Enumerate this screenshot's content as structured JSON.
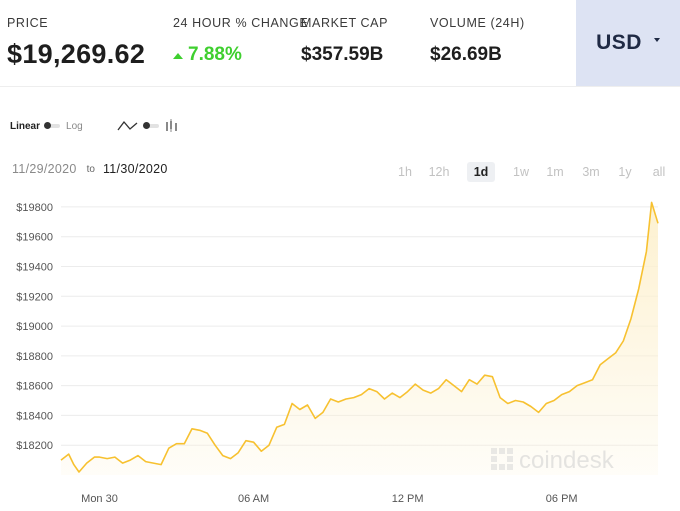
{
  "stats": {
    "price": {
      "label": "PRICE",
      "value": "$19,269.62"
    },
    "change": {
      "label": "24 HOUR % CHANGE",
      "value": "7.88%",
      "direction": "up"
    },
    "market_cap": {
      "label": "MARKET CAP",
      "value": "$357.59B"
    },
    "volume": {
      "label": "VOLUME (24H)",
      "value": "$26.69B"
    }
  },
  "currency": {
    "selected": "USD"
  },
  "scale_toggle": {
    "left": "Linear",
    "right": "Log",
    "selected": "Linear"
  },
  "chart_type_toggle": {
    "left_icon": "line-chart-icon",
    "right_icon": "candlestick-icon",
    "selected": "line"
  },
  "date_range": {
    "from": "11/29/2020",
    "sep": "to",
    "to": "11/30/2020"
  },
  "ranges": [
    {
      "label": "1h",
      "active": false
    },
    {
      "label": "12h",
      "active": false
    },
    {
      "label": "1d",
      "active": true
    },
    {
      "label": "1w",
      "active": false
    },
    {
      "label": "1m",
      "active": false
    },
    {
      "label": "3m",
      "active": false
    },
    {
      "label": "1y",
      "active": false
    },
    {
      "label": "all",
      "active": false
    }
  ],
  "watermark": "coindesk",
  "colors": {
    "line": "#f7c130",
    "fill": "#fdf1d0",
    "positive": "#3fcf2f",
    "currency_bg": "#dde3f3"
  },
  "chart_data": {
    "type": "area",
    "x_unit": "hours since Mon 30 00:00",
    "xlim": [
      -1.5,
      21.75
    ],
    "ylim": [
      18000,
      19880
    ],
    "y_ticks": [
      18200,
      18400,
      18600,
      18800,
      19000,
      19200,
      19400,
      19600,
      19800
    ],
    "y_tick_labels": [
      "$18200",
      "$18400",
      "$18600",
      "$18800",
      "$19000",
      "$19200",
      "$19400",
      "$19600",
      "$19800"
    ],
    "x_ticks": [
      0,
      6,
      12,
      18
    ],
    "x_tick_labels": [
      "Mon 30",
      "06 AM",
      "12 PM",
      "06 PM"
    ],
    "grid": "horizontal",
    "series": [
      {
        "x": [
          -1.5,
          -1.2,
          -1.0,
          -0.8,
          -0.5,
          -0.2,
          0.0,
          0.3,
          0.6,
          0.9,
          1.2,
          1.5,
          1.8,
          2.1,
          2.4,
          2.7,
          3.0,
          3.3,
          3.6,
          3.9,
          4.2,
          4.5,
          4.8,
          5.1,
          5.4,
          5.7,
          6.0,
          6.3,
          6.6,
          6.9,
          7.2,
          7.5,
          7.8,
          8.1,
          8.4,
          8.7,
          9.0,
          9.3,
          9.6,
          9.9,
          10.2,
          10.5,
          10.8,
          11.1,
          11.4,
          11.7,
          12.0,
          12.3,
          12.6,
          12.9,
          13.2,
          13.5,
          13.8,
          14.1,
          14.4,
          14.7,
          15.0,
          15.3,
          15.6,
          15.9,
          16.2,
          16.5,
          16.8,
          17.1,
          17.4,
          17.7,
          18.0,
          18.3,
          18.6,
          18.9,
          19.2,
          19.5,
          19.8,
          20.1,
          20.4,
          20.7,
          21.0,
          21.3,
          21.5,
          21.75
        ],
        "y": [
          18100,
          18140,
          18070,
          18020,
          18080,
          18120,
          18120,
          18110,
          18120,
          18080,
          18100,
          18130,
          18090,
          18080,
          18070,
          18180,
          18210,
          18210,
          18310,
          18300,
          18280,
          18200,
          18130,
          18110,
          18150,
          18230,
          18220,
          18160,
          18200,
          18320,
          18340,
          18480,
          18440,
          18470,
          18380,
          18420,
          18510,
          18490,
          18510,
          18520,
          18540,
          18580,
          18560,
          18510,
          18550,
          18520,
          18560,
          18610,
          18570,
          18550,
          18580,
          18640,
          18600,
          18560,
          18640,
          18610,
          18670,
          18660,
          18520,
          18480,
          18500,
          18490,
          18460,
          18420,
          18480,
          18500,
          18540,
          18560,
          18600,
          18620,
          18640,
          18740,
          18780,
          18820,
          18900,
          19050,
          19250,
          19500,
          19830,
          19690
        ]
      }
    ]
  }
}
